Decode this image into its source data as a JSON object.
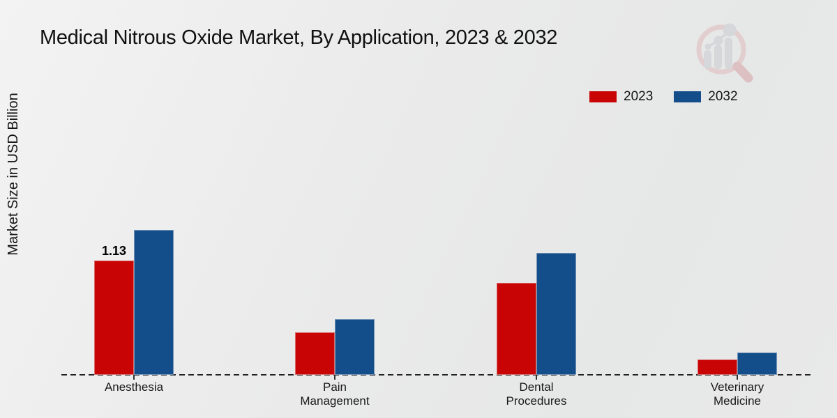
{
  "title": "Medical Nitrous Oxide Market, By Application, 2023 & 2032",
  "ylabel": "Market Size in USD Billion",
  "legend": [
    {
      "label": "2023",
      "color": "#c80404"
    },
    {
      "label": "2032",
      "color": "#134e8b"
    }
  ],
  "chart_data": {
    "type": "bar",
    "title": "Medical Nitrous Oxide Market, By Application, 2023 & 2032",
    "xlabel": "",
    "ylabel": "Market Size in USD Billion",
    "categories": [
      "Anesthesia",
      "Pain Management",
      "Dental Procedures",
      "Veterinary Medicine"
    ],
    "series": [
      {
        "name": "2023",
        "color": "#c80404",
        "values": [
          1.13,
          0.42,
          0.91,
          0.15
        ]
      },
      {
        "name": "2032",
        "color": "#134e8b",
        "values": [
          1.43,
          0.55,
          1.2,
          0.22
        ]
      }
    ],
    "annotations": [
      {
        "series_index": 0,
        "category_index": 0,
        "text": "1.13"
      }
    ],
    "ylim": [
      0,
      1.5
    ],
    "grid": false,
    "y_tick_labels_visible": false,
    "legend_position": "top-right",
    "baseline_style": "dashed"
  },
  "colors": {
    "background_light": "#f3f3f3",
    "background_dark": "#e6e7e7",
    "bottom_strip": "#bc0404",
    "baseline": "#222222",
    "text": "#141414"
  },
  "watermark_icon": "market-research-future-logo"
}
